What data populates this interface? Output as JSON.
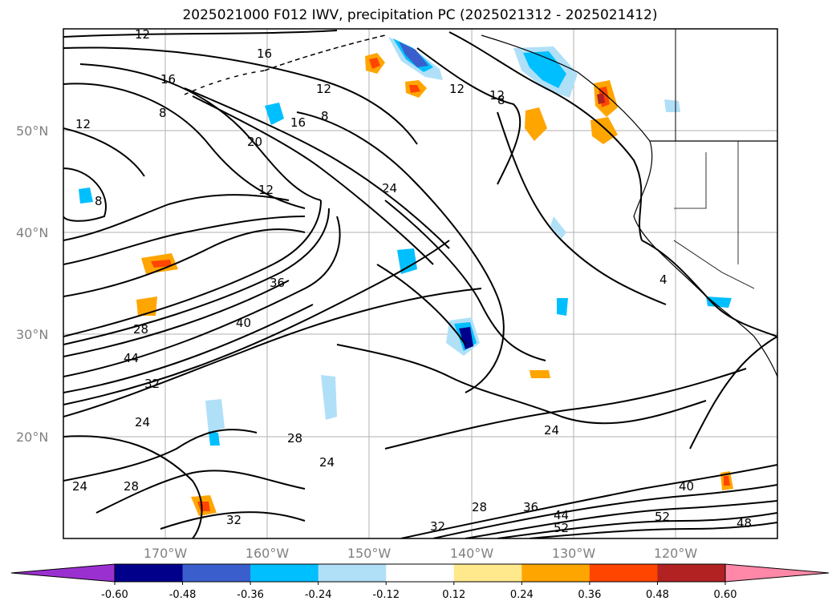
{
  "title": "2025021000 F012 IWV, precipitation PC (2025021312 - 2025021412)",
  "map": {
    "projection": "equirectangular",
    "lon_range": [
      -179,
      -109
    ],
    "lat_range": [
      10,
      60
    ],
    "grid": true,
    "lat_labels": [
      "50°N",
      "40°N",
      "30°N",
      "20°N"
    ],
    "lon_labels": [
      "170°W",
      "160°W",
      "150°W",
      "140°W",
      "130°W",
      "120°W"
    ],
    "contour_labels": [
      "12",
      "16",
      "16",
      "12",
      "8",
      "8",
      "12",
      "16",
      "20",
      "12",
      "12",
      "8",
      "12",
      "8",
      "24",
      "36",
      "40",
      "28",
      "44",
      "32",
      "24",
      "28",
      "24",
      "28",
      "24",
      "32",
      "28",
      "36",
      "44",
      "52",
      "32",
      "24",
      "40",
      "52",
      "48",
      "4"
    ]
  },
  "colorbar": {
    "ticks": [
      "-0.60",
      "-0.48",
      "-0.36",
      "-0.24",
      "-0.12",
      "0.12",
      "0.24",
      "0.36",
      "0.48",
      "0.60"
    ],
    "colors": [
      "#9b30d0",
      "#00008b",
      "#3a5fcd",
      "#00bfff",
      "#b0e0f8",
      "#ffffff",
      "#ffe98c",
      "#ffa500",
      "#ff4500",
      "#b22222",
      "#ff88a8"
    ],
    "extend": "both"
  }
}
